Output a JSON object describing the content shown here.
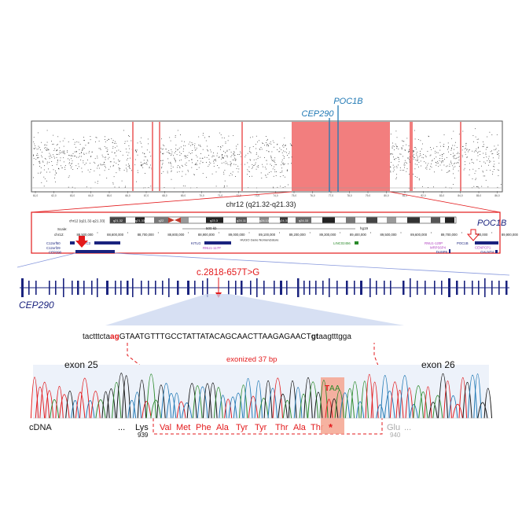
{
  "gene_labels": {
    "poc1b": "POC1B",
    "cep290": "CEP290"
  },
  "chromosome_region": "chr12 (q21.32-q21.33)",
  "cnv_x_ticks": [
    "61,0",
    "62,0",
    "63,0",
    "64,0",
    "65,0",
    "66,0",
    "67,0",
    "68,0",
    "69,0",
    "70,0",
    "71,0",
    "72,0",
    "73,0",
    "74,0",
    "75,0",
    "76,0",
    "77,0",
    "78,0",
    "79,0",
    "80,0",
    "81,0",
    "82,0",
    "83,0",
    "84,0",
    "85,0",
    "86,0"
  ],
  "browser": {
    "ideogram_label": "chr12 (q21.32-q21.33)",
    "ideogram_bands": [
      "q21.32",
      "q21.33",
      "q22",
      "q23.1",
      "q23.3",
      "q24.11",
      "q24.13",
      "q24.31",
      "q24.33"
    ],
    "scale_label": "Scale:",
    "scale_value": "500 kb",
    "assembly": "hg19",
    "chrom_label": "chr12:",
    "coords": [
      "88,500,000",
      "88,600,000",
      "88,700,000",
      "88,800,000",
      "88,900,000",
      "89,000,000",
      "89,100,000",
      "89,200,000",
      "89,300,000",
      "89,400,000",
      "89,500,000",
      "89,600,000",
      "89,700,000",
      "89,800,000",
      "89,900,000"
    ],
    "track_title": "HUGO Gene Nomenclature",
    "genes": [
      {
        "name": "C12orf50",
        "color": "#1a237e"
      },
      {
        "name": "C12orf29",
        "color": "#1a237e"
      },
      {
        "name": "CEP290",
        "color": "#1a237e"
      },
      {
        "name": "TMTC3",
        "color": "#1a237e"
      },
      {
        "name": "KITLG",
        "color": "#1a237e"
      },
      {
        "name": "RNU1-117P",
        "color": "#b040c0"
      },
      {
        "name": "LINC02456",
        "color": "#2a8a2a"
      },
      {
        "name": "RNU1-120P",
        "color": "#b040c0"
      },
      {
        "name": "MRPS6P4",
        "color": "#b040c0"
      },
      {
        "name": "DUSP6",
        "color": "#1a237e"
      },
      {
        "name": "POC1B",
        "color": "#1a237e"
      },
      {
        "name": "CENPCP1",
        "color": "#b040c0"
      },
      {
        "name": "GALNT4",
        "color": "#1a237e"
      }
    ]
  },
  "variant": "c.2818-657T>G",
  "sequence": {
    "intron_left": "tactttcta",
    "splice_acceptor": "ag",
    "exon": "GTAATGTTTGCCTATTATACAGCAACTTAAGAGAACT",
    "splice_donor": "gt",
    "intron_right": "aagtttgga"
  },
  "exonized_label": "exonized 37 bp",
  "exon25_label": "exon 25",
  "exon26_label": "exon 26",
  "cdna_label": "cDNA",
  "ellipsis": "...",
  "lys": {
    "aa": "Lys",
    "num": "939"
  },
  "novel_aas": [
    "Val",
    "Met",
    "Phe",
    "Ala",
    "Tyr",
    "Tyr",
    "Thr",
    "Ala",
    "Thr"
  ],
  "stop": "*",
  "stop_codon": {
    "t": "T",
    "a1": "A",
    "a2": "A"
  },
  "glu": {
    "aa": "Glu",
    "dots": "...",
    "num": "940"
  },
  "colors": {
    "red": "#e31a1c",
    "blue": "#1f78b4",
    "navy": "#1a237e",
    "gray": "#aaaaaa",
    "cnv_fill": "#f08080"
  }
}
